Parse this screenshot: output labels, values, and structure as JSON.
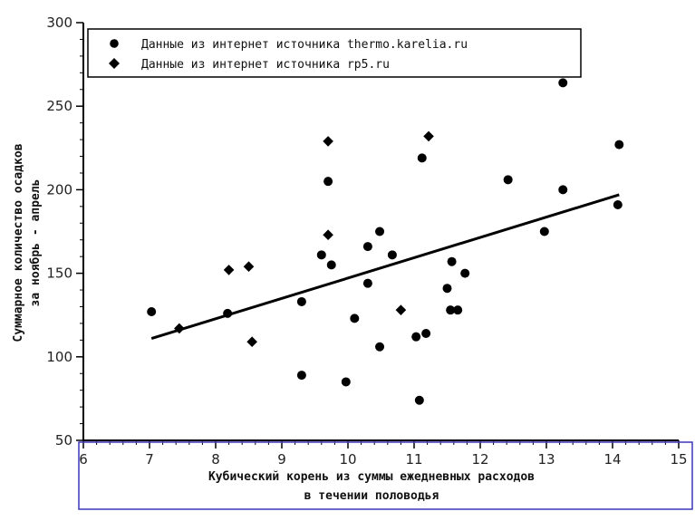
{
  "chart_data": {
    "type": "scatter",
    "title": "",
    "xlabel_lines": [
      "Кубический корень из суммы ежедневных расходов",
      "в течении половодья"
    ],
    "ylabel_lines": [
      "Суммарное количество осадков",
      "за ноябрь - апрель"
    ],
    "xlim": [
      6,
      15
    ],
    "ylim": [
      50,
      300
    ],
    "xticks": [
      6,
      7,
      8,
      9,
      10,
      11,
      12,
      13,
      14,
      15
    ],
    "yticks": [
      50,
      100,
      150,
      200,
      250,
      300
    ],
    "grid": false,
    "legend_position": "top-left",
    "series": [
      {
        "name": "Данные из интернет источника thermo.karelia.ru",
        "marker": "circle",
        "x": [
          7.03,
          8.18,
          9.3,
          9.3,
          9.6,
          9.7,
          9.75,
          9.97,
          10.1,
          10.3,
          10.3,
          10.48,
          10.48,
          10.67,
          11.03,
          11.08,
          11.12,
          11.18,
          11.5,
          11.55,
          11.57,
          11.66,
          11.77,
          12.42,
          12.97,
          13.25,
          13.25,
          14.08,
          14.1
        ],
        "y": [
          127,
          126,
          133,
          89,
          161,
          205,
          155,
          85,
          123,
          166,
          144,
          175,
          106,
          161,
          112,
          74,
          219,
          114,
          141,
          128,
          157,
          128,
          150,
          206,
          175,
          200,
          264,
          191,
          227
        ]
      },
      {
        "name": "Данные из интернет источника rp5.ru",
        "marker": "diamond",
        "x": [
          7.45,
          8.2,
          8.5,
          8.55,
          9.7,
          9.7,
          10.8,
          11.22
        ],
        "y": [
          117,
          152,
          154,
          109,
          229,
          173,
          128,
          232
        ]
      }
    ],
    "trendline": {
      "x": [
        7.03,
        14.1
      ],
      "y": [
        111,
        197
      ]
    }
  }
}
